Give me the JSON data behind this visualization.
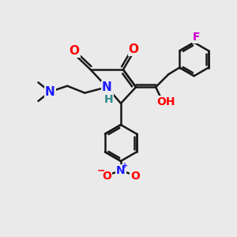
{
  "bg_color": "#eaeaea",
  "bond_color": "#1a1a1a",
  "bond_width": 1.8,
  "dbo": 0.12,
  "atom_colors": {
    "N": "#1a1aff",
    "O": "#ff0000",
    "F": "#cc00cc",
    "H": "#2e8b8b",
    "Np": "#1a1aff",
    "Om": "#ff0000"
  },
  "fs_large": 11,
  "fs_med": 10,
  "fs_small": 9
}
